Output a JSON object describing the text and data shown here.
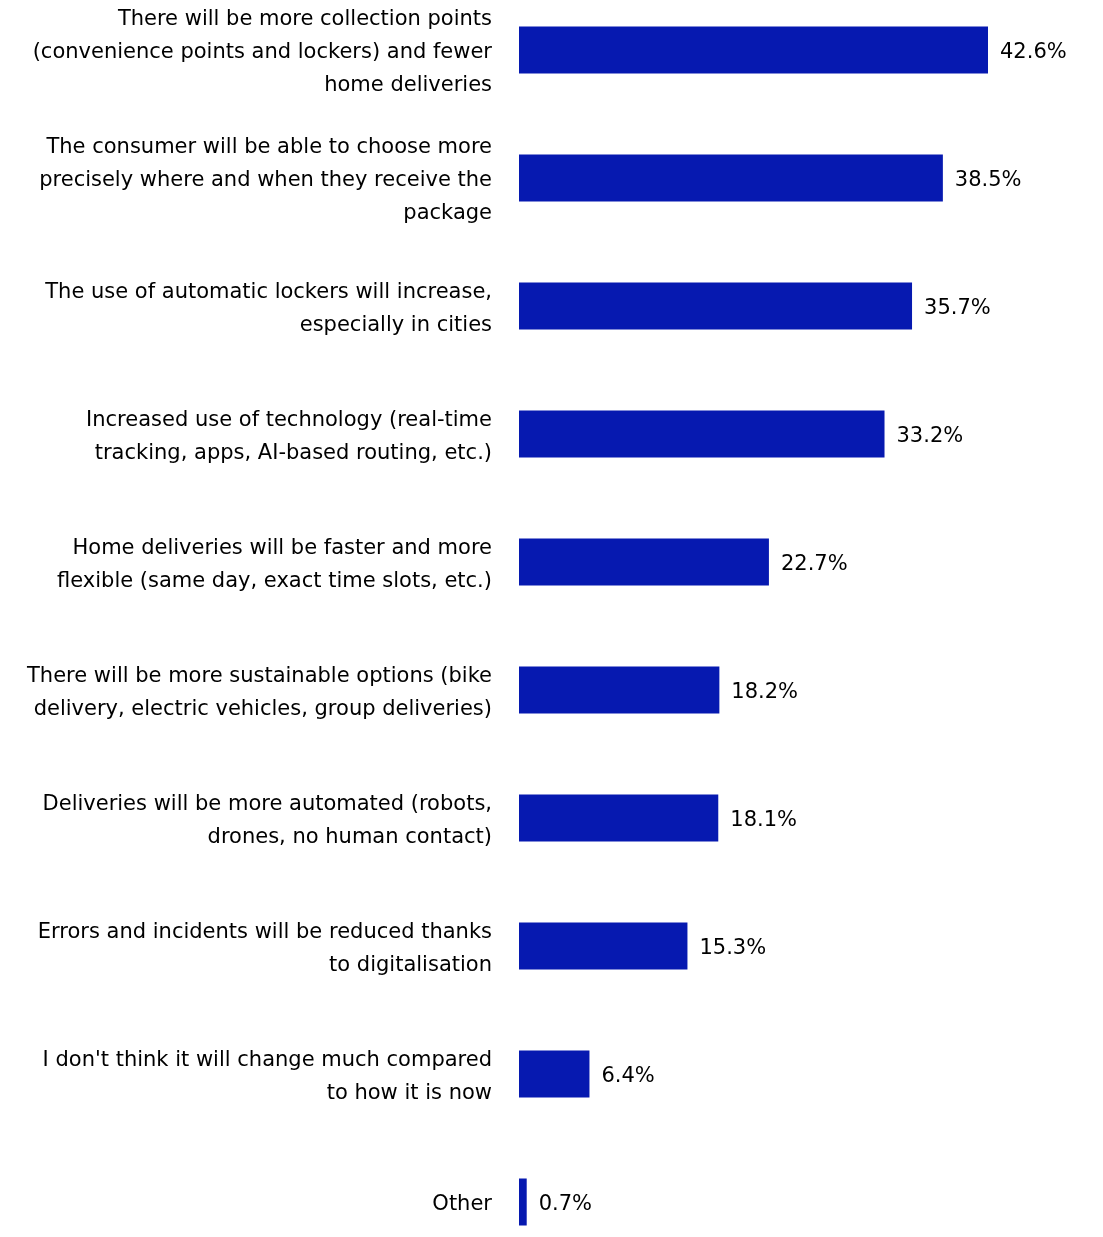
{
  "chart_data": {
    "type": "bar",
    "orientation": "horizontal",
    "categories": [
      "There will be more collection points (convenience points and lockers) and fewer home deliveries",
      "The consumer will be able to choose more precisely where and when they receive the package",
      "The use of automatic lockers will increase, especially in cities",
      "Increased use of technology (real-time tracking, apps, AI-based routing, etc.)",
      "Home deliveries will be faster and more flexible (same day, exact time slots, etc.)",
      "There will be more sustainable options (bike delivery, electric vehicles, group deliveries)",
      "Deliveries will be more automated (robots, drones, no human contact)",
      "Errors and incidents will be reduced thanks to digitalisation",
      "I don't think it will change much compared to how it is now",
      "Other"
    ],
    "values": [
      42.6,
      38.5,
      35.7,
      33.2,
      22.7,
      18.2,
      18.1,
      15.3,
      6.4,
      0.7
    ],
    "value_labels": [
      "42.6%",
      "38.5%",
      "35.7%",
      "33.2%",
      "22.7%",
      "18.2%",
      "18.1%",
      "15.3%",
      "6.4%",
      "0.7%"
    ],
    "color": "#0619b0"
  }
}
